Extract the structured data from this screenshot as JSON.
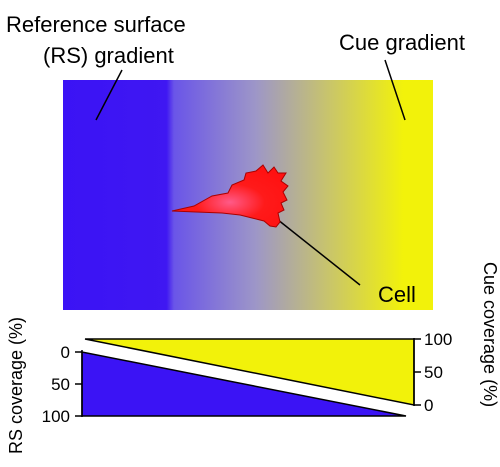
{
  "labels": {
    "rs_gradient_line1": "Reference surface",
    "rs_gradient_line2": "(RS) gradient",
    "cue_gradient": "Cue gradient",
    "cell": "Cell",
    "rs_axis": "RS coverage (%)",
    "cue_axis": "Cue coverage (%)"
  },
  "rs_ticks": [
    "0",
    "50",
    "100"
  ],
  "cue_ticks": [
    "100",
    "50",
    "0"
  ],
  "colors": {
    "rs_blue": "#3b13f5",
    "cue_yellow": "#f2f20a",
    "cell_red": "#ff1111"
  }
}
